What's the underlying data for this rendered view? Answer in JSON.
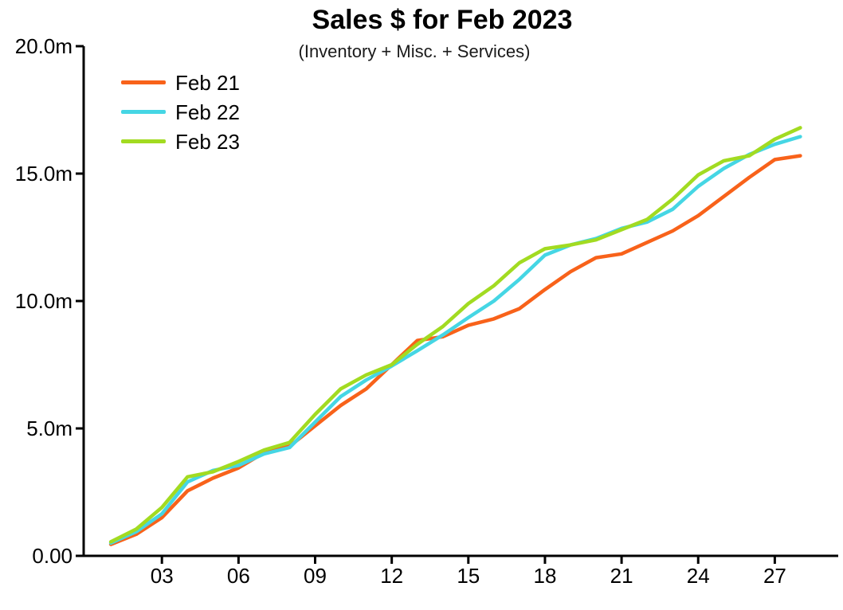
{
  "title": "Sales $ for Feb 2023",
  "subtitle": "(Inventory + Misc. + Services)",
  "colors": {
    "background": "#FFFFFF",
    "axis": "#000000",
    "text": "#000000",
    "series_feb21": "#F8621A",
    "series_feb22": "#45D6E4",
    "series_feb23": "#A2DB21"
  },
  "chart_data": {
    "type": "line",
    "title": "Sales $ for Feb 2023",
    "subtitle": "(Inventory + Misc. + Services)",
    "xlabel": "",
    "ylabel": "",
    "unit": "millions of dollars (m)",
    "grid": false,
    "legend_position": "top-left",
    "xlim": [
      1,
      28.5
    ],
    "ylim": [
      0,
      20
    ],
    "x": [
      1,
      2,
      3,
      4,
      5,
      6,
      7,
      8,
      9,
      10,
      11,
      12,
      13,
      14,
      15,
      16,
      17,
      18,
      19,
      20,
      21,
      22,
      23,
      24,
      25,
      26,
      27,
      28
    ],
    "x_ticks": {
      "values": [
        3,
        6,
        9,
        12,
        15,
        18,
        21,
        24,
        27
      ],
      "labels": [
        "03",
        "06",
        "09",
        "12",
        "15",
        "18",
        "21",
        "24",
        "27"
      ]
    },
    "y_ticks": {
      "values": [
        0,
        5,
        10,
        15,
        20
      ],
      "labels": [
        "0.00",
        "5.0m",
        "10.0m",
        "15.0m",
        "20.0m"
      ]
    },
    "series": [
      {
        "name": "Feb 21",
        "color": "#F8621A",
        "values": [
          0.45,
          0.85,
          1.5,
          2.55,
          3.05,
          3.45,
          4.05,
          4.3,
          5.1,
          5.9,
          6.55,
          7.5,
          8.45,
          8.6,
          9.05,
          9.3,
          9.7,
          10.45,
          11.15,
          11.7,
          11.85,
          12.3,
          12.75,
          13.35,
          14.1,
          14.85,
          15.55,
          15.7
        ]
      },
      {
        "name": "Feb 22",
        "color": "#45D6E4",
        "values": [
          0.5,
          0.95,
          1.65,
          2.9,
          3.35,
          3.55,
          4.0,
          4.25,
          5.25,
          6.25,
          6.9,
          7.45,
          8.05,
          8.67,
          9.35,
          10.0,
          10.85,
          11.8,
          12.2,
          12.45,
          12.85,
          13.1,
          13.6,
          14.5,
          15.2,
          15.75,
          16.15,
          16.45
        ]
      },
      {
        "name": "Feb 23",
        "color": "#A2DB21",
        "values": [
          0.55,
          1.05,
          1.9,
          3.1,
          3.3,
          3.7,
          4.15,
          4.45,
          5.55,
          6.55,
          7.1,
          7.5,
          8.3,
          9.0,
          9.9,
          10.6,
          11.5,
          12.05,
          12.2,
          12.4,
          12.8,
          13.2,
          14.0,
          14.95,
          15.5,
          15.7,
          16.35,
          16.8
        ]
      }
    ]
  }
}
